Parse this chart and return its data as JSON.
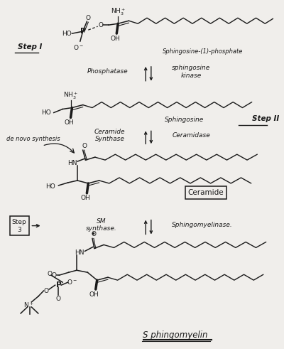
{
  "bg_color": "#f0eeeb",
  "ink_color": "#1a1a1a",
  "fig_width": 4.0,
  "fig_height": 4.91,
  "dpi": 100,
  "step1_label": "Step I",
  "step2_label": "Step II",
  "step3_label": "Step\n3",
  "phosphatase": "Phosphatase",
  "sphingosine_kinase": "sphingosine\nkinase",
  "ceramide_synthase": "Ceramide\nSynthase",
  "ceramidase": "Ceramidase",
  "sm_synthase": "SM\nsynthase.",
  "sphingomyelinase": "Sphingomyelinase.",
  "sphingosine1p_label": "Sphingosine-(1)-phosphate",
  "sphingosine_label": "Sphingosine",
  "ceramide_label": "Ceramide",
  "sphingomyelin_label": "S phingomyelin",
  "de_novo": "de novo synthesis",
  "nh3_plus": "NH$_3^+$",
  "ho": "HO",
  "oh": "OH",
  "o_minus": "O$^-$"
}
